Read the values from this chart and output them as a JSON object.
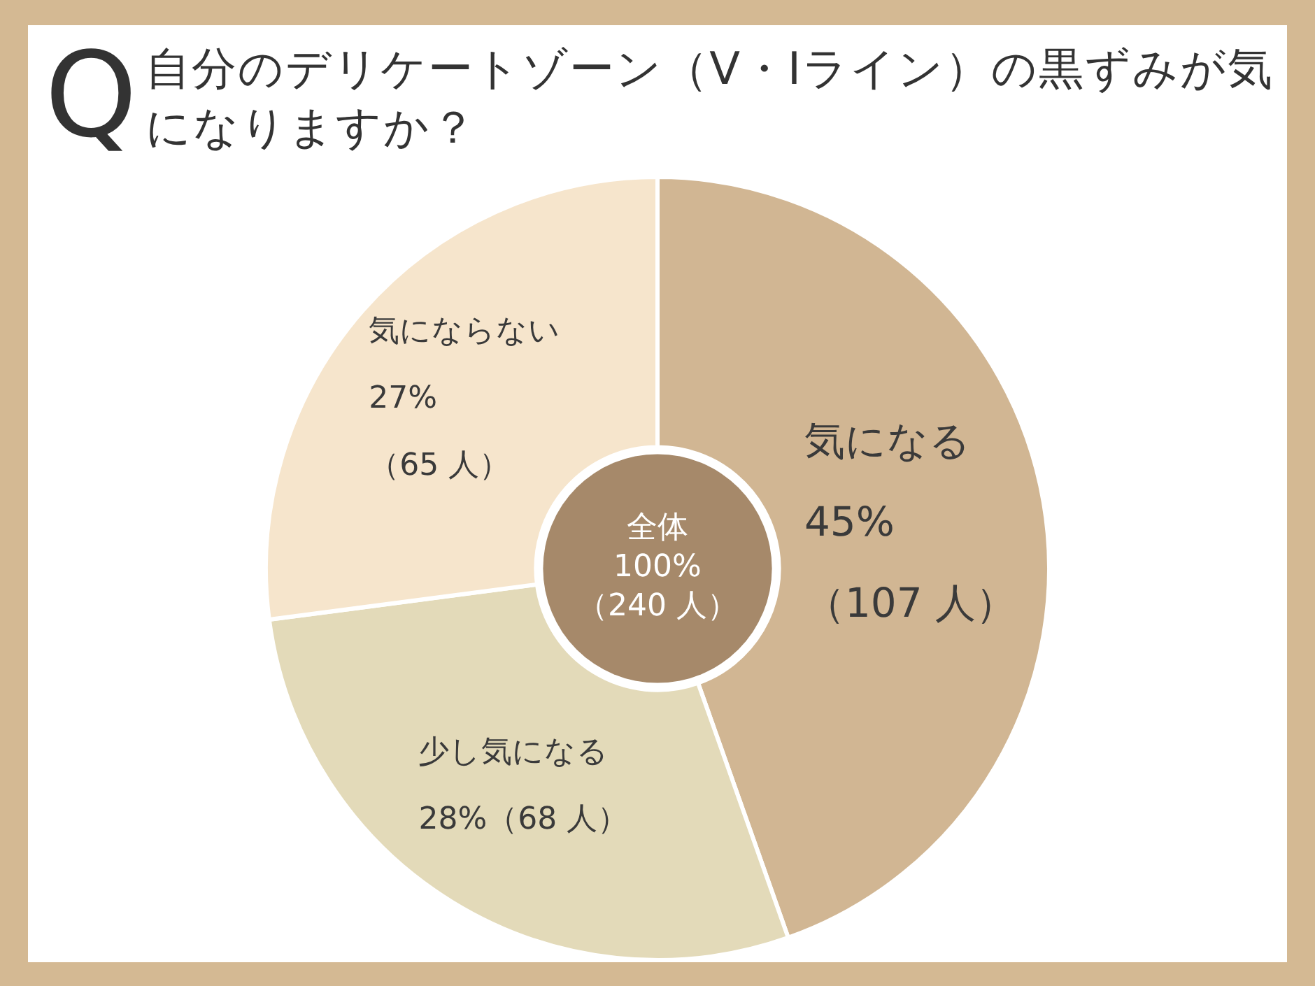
{
  "chart_data": {
    "type": "donut",
    "title": "Q自分のデリケートゾーン（V・Iライン）の黒ずみが気になりますか？",
    "categories": [
      "気になる",
      "少し気になる",
      "気にならない"
    ],
    "values": [
      107,
      68,
      65
    ],
    "colors": [
      "#d1b693",
      "#e3dab9",
      "#f6e5cc"
    ],
    "value_labels": [
      "45%\n（107 人）",
      "28%（68 人）",
      "27%\n（65 人）"
    ],
    "annotations": [
      "全体\n100%\n（240 人）"
    ],
    "legend": false
  }
}
